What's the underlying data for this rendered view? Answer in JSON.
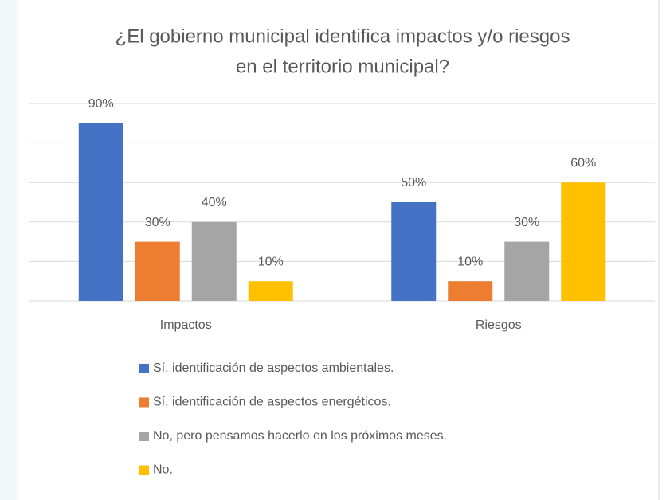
{
  "chart_data": {
    "type": "bar",
    "title": [
      "¿El gobierno municipal identifica impactos y/o riesgos",
      "en el territorio municipal?"
    ],
    "categories": [
      "Impactos",
      "Riesgos"
    ],
    "series": [
      {
        "name": "Sí, identificación de aspectos ambientales.",
        "color": "#4472c4",
        "values": [
          90,
          50
        ],
        "value_labels": [
          "90%",
          "50%"
        ]
      },
      {
        "name": "Sí, identificación de aspectos energéticos.",
        "color": "#ed7d31",
        "values": [
          30,
          10
        ],
        "value_labels": [
          "30%",
          "10%"
        ]
      },
      {
        "name": "No, pero pensamos hacerlo en los próximos meses.",
        "color": "#a5a5a5",
        "values": [
          40,
          30
        ],
        "value_labels": [
          "40%",
          "30%"
        ]
      },
      {
        "name": "No.",
        "color": "#ffc000",
        "values": [
          10,
          60
        ],
        "value_labels": [
          "10%",
          "60%"
        ]
      }
    ],
    "ylim": [
      0,
      100
    ],
    "yticks": [
      0,
      20,
      40,
      60,
      80,
      100
    ],
    "grid": true,
    "legend": "bottom"
  }
}
